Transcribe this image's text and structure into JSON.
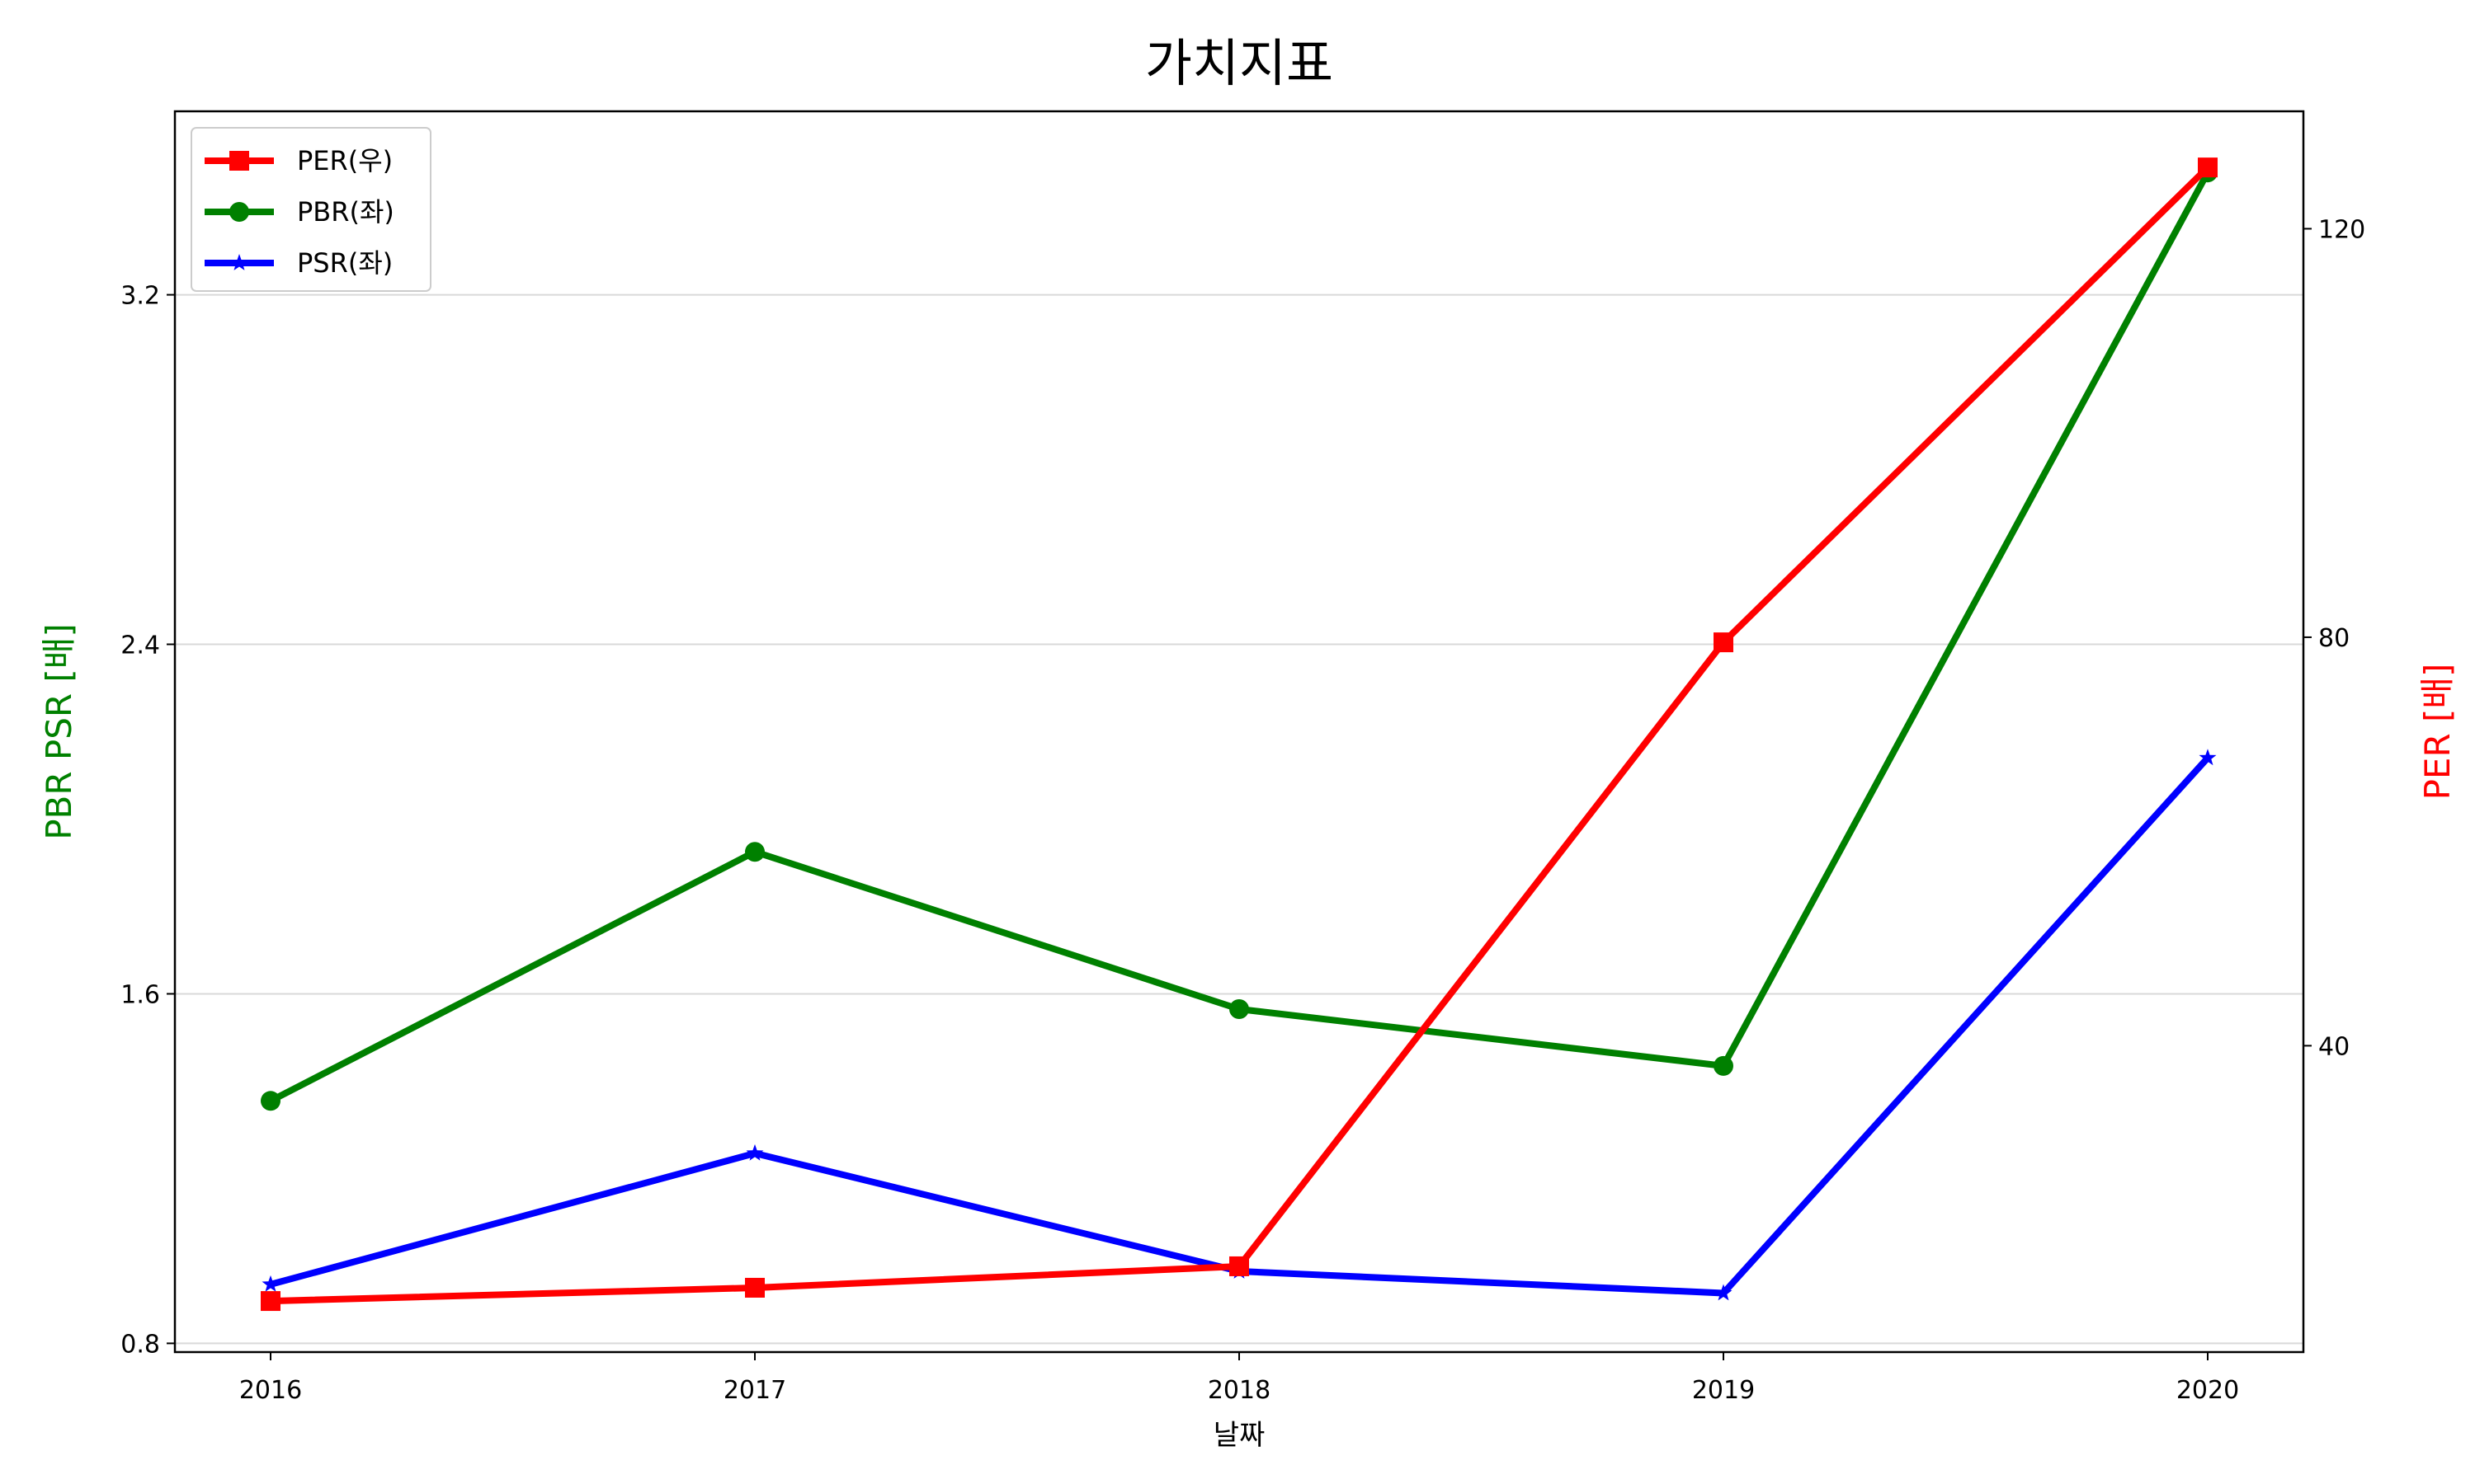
{
  "chart_data": {
    "type": "line",
    "title": "가치지표",
    "xlabel": "날짜",
    "ylabel_left": "PBR PSR [배]",
    "ylabel_right": "PER [배]",
    "ylabel_left_color": "#008000",
    "ylabel_right_color": "#ff0000",
    "categories": [
      "2016",
      "2017",
      "2018",
      "2019",
      "2020"
    ],
    "left_axis": {
      "ylim": [
        0.78,
        3.62
      ],
      "ticks": [
        0.8,
        1.6,
        2.4,
        3.2
      ],
      "tick_labels": [
        "0.8",
        "1.6",
        "2.4",
        "3.2"
      ]
    },
    "right_axis": {
      "ylim": [
        10,
        131.5
      ],
      "ticks": [
        40,
        80,
        120
      ],
      "tick_labels": [
        "40",
        "80",
        "120"
      ]
    },
    "grid": "horizontal, left axis",
    "legend_position": "upper-left",
    "series": [
      {
        "name": "PER(우)",
        "axis": "right",
        "color": "#ff0000",
        "marker": "square",
        "values": [
          15.0,
          16.3,
          18.4,
          79.5,
          126.0
        ]
      },
      {
        "name": "PBR(좌)",
        "axis": "left",
        "color": "#008000",
        "marker": "circle",
        "values": [
          1.355,
          1.925,
          1.565,
          1.435,
          3.48
        ]
      },
      {
        "name": "PSR(좌)",
        "axis": "left",
        "color": "#0000ff",
        "marker": "star",
        "values": [
          0.935,
          1.235,
          0.965,
          0.915,
          2.14
        ]
      }
    ]
  }
}
